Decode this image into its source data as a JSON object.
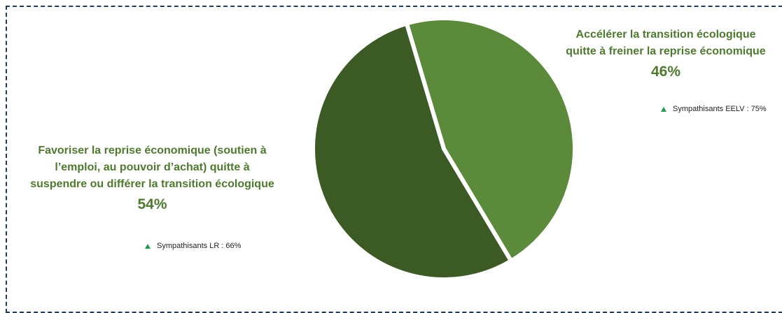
{
  "chart_data": {
    "type": "pie",
    "slices": [
      {
        "label": "Accélérer la transition écologique quitte à freiner la reprise économique",
        "value": 46,
        "value_label": "46%",
        "color": "#5a8a3a",
        "note": "Sympathisants EELV : 75%"
      },
      {
        "label": "Favoriser la reprise économique (soutien à l’emploi, au pouvoir d’achat) quitte à suspendre ou différer la transition écologique",
        "value": 54,
        "value_label": "54%",
        "color": "#3b5a24",
        "note": "Sympathisants LR : 66%"
      }
    ],
    "label_color": "#4e7a2e",
    "note_marker_color": "#1e9e4a"
  }
}
